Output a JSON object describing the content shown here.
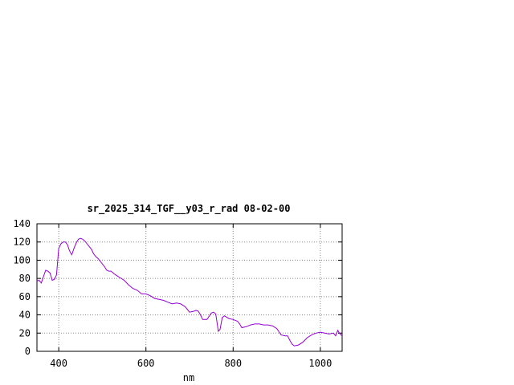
{
  "chart_data": {
    "type": "line",
    "title": "sr_2025_314_TGF__y03_r_rad 08-02-00",
    "xlabel": "nm",
    "ylabel": "",
    "xlim": [
      350,
      1050
    ],
    "ylim": [
      0,
      140
    ],
    "x_ticks": [
      400,
      600,
      800,
      1000
    ],
    "x_tick_labels": [
      "400",
      "600",
      "800",
      "1000"
    ],
    "y_ticks": [
      0,
      20,
      40,
      60,
      80,
      100,
      120,
      140
    ],
    "y_tick_labels": [
      "0",
      "20",
      "40",
      "60",
      "80",
      "100",
      "120",
      "140"
    ],
    "grid": true,
    "legend": "none",
    "series_color": "#9400d3",
    "series": [
      {
        "x": [
          350,
          355,
          360,
          365,
          370,
          375,
          380,
          385,
          390,
          395,
          400,
          405,
          410,
          415,
          420,
          425,
          430,
          435,
          440,
          445,
          450,
          455,
          460,
          465,
          470,
          475,
          480,
          485,
          490,
          495,
          500,
          505,
          510,
          515,
          520,
          530,
          540,
          550,
          560,
          570,
          580,
          590,
          600,
          610,
          620,
          630,
          640,
          650,
          660,
          670,
          680,
          690,
          700,
          710,
          715,
          720,
          725,
          730,
          740,
          750,
          755,
          760,
          763,
          766,
          770,
          775,
          780,
          790,
          800,
          810,
          815,
          820,
          830,
          840,
          850,
          860,
          870,
          880,
          890,
          900,
          910,
          920,
          925,
          930,
          935,
          940,
          950,
          960,
          970,
          980,
          990,
          1000,
          1010,
          1020,
          1030,
          1035,
          1040,
          1045,
          1050
        ],
        "y": [
          77,
          78,
          75,
          82,
          89,
          88,
          86,
          78,
          79,
          84,
          113,
          118,
          120,
          120,
          117,
          110,
          106,
          113,
          119,
          123,
          124,
          123,
          121,
          118,
          115,
          112,
          107,
          104,
          102,
          99,
          96,
          93,
          89,
          88,
          88,
          84,
          81,
          78,
          73,
          69,
          67,
          63,
          63,
          61,
          58,
          57,
          56,
          54,
          52,
          53,
          52,
          49,
          43,
          44,
          45,
          44,
          40,
          35,
          35,
          42,
          43,
          41,
          32,
          22,
          24,
          37,
          39,
          36,
          35,
          33,
          30,
          26,
          27,
          29,
          30,
          30,
          29,
          29,
          28,
          25,
          18,
          17,
          17,
          12,
          8,
          6,
          7,
          10,
          15,
          18,
          20,
          21,
          20,
          19,
          20,
          17,
          23,
          19,
          17
        ]
      }
    ]
  }
}
